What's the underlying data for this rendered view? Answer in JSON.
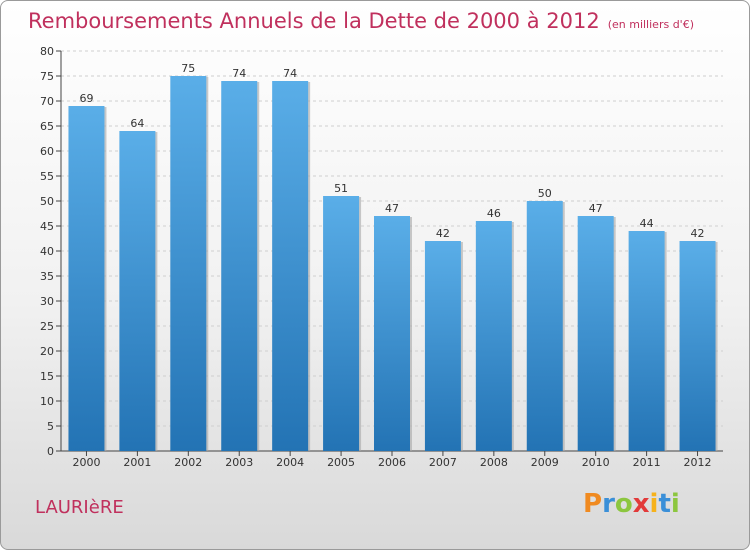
{
  "header": {
    "title": "Remboursements Annuels de la Dette de 2000 à 2012",
    "subtitle": "(en milliers d'€)"
  },
  "footer": {
    "commune": "LAURIèRE",
    "logo": [
      "P",
      "r",
      "o",
      "x",
      "i",
      "t",
      "i"
    ]
  },
  "colors": {
    "title": "#c0305d",
    "bar_top": "#5aaee8",
    "bar_bottom": "#2373b4",
    "logo": [
      "#f08a20",
      "#3a8fd8",
      "#8cc63f",
      "#e23a3a",
      "#f6b21b",
      "#3a8fd8",
      "#8cc63f"
    ]
  },
  "chart_data": {
    "type": "bar",
    "categories": [
      "2000",
      "2001",
      "2002",
      "2003",
      "2004",
      "2005",
      "2006",
      "2007",
      "2008",
      "2009",
      "2010",
      "2011",
      "2012"
    ],
    "values": [
      69,
      64,
      75,
      74,
      74,
      51,
      47,
      42,
      46,
      50,
      47,
      44,
      42
    ],
    "title": "Remboursements Annuels de la Dette de 2000 à 2012",
    "xlabel": "",
    "ylabel": "",
    "ylim": [
      0,
      80
    ],
    "yticks": [
      0,
      5,
      10,
      15,
      20,
      25,
      30,
      35,
      40,
      45,
      50,
      55,
      60,
      65,
      70,
      75,
      80
    ],
    "grid": true,
    "legend": "none"
  }
}
